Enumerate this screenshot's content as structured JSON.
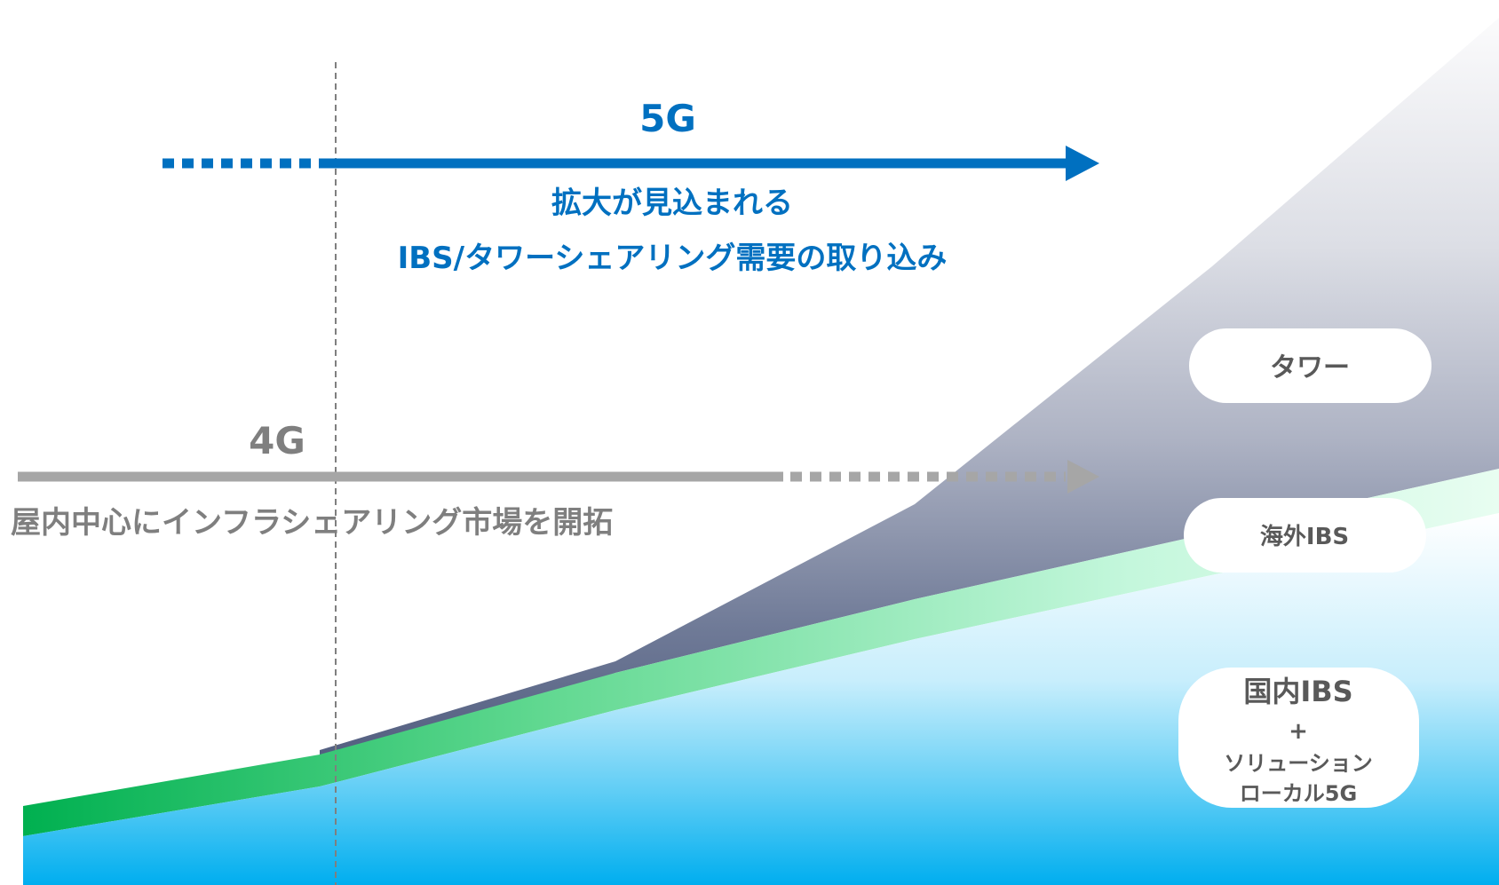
{
  "title_5g": "5G",
  "caption_5g": {
    "line1": "拡大が見込まれる",
    "line2": "IBS/タワーシェアリング需要の取り込み"
  },
  "title_4g": "4G",
  "caption_4g": "屋内中心にインフラシェアリング市場を開拓",
  "segments": {
    "tower": "タワー",
    "overseas_ibs": "海外IBS",
    "domestic": {
      "line1": "国内IBS",
      "plus": "+",
      "line2": "ソリューション",
      "line3": "ローカル5G"
    }
  },
  "colors": {
    "blue": "#0070c0",
    "gray": "#a6a6a6",
    "gray_text": "#7f7f7f",
    "green": "#00b050",
    "sky": "#00b0f0",
    "slate": "#5a6788",
    "label_text": "#595959"
  }
}
